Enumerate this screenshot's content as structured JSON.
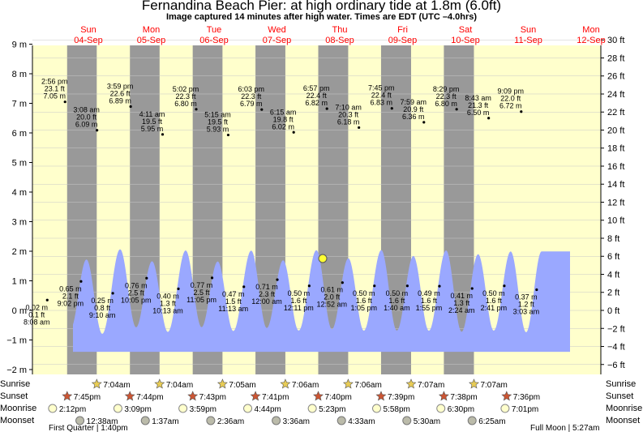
{
  "title": "Fernandina Beach Pier: at high  ordinary tide at 1.8m (6.0ft)",
  "subtitle": "Image captured 14 minutes after high water. Times are EDT (UTC –4.0hrs)",
  "colors": {
    "tide_fill": "#9aa8ff",
    "day_bg": "#ffffcc",
    "night_bg": "#999999",
    "day_label": "#ff0000",
    "current_marker": "#ffff33"
  },
  "chart_data": {
    "type": "area",
    "title": "Fernandina Beach Pier: at high  ordinary tide at 1.8m (6.0ft)",
    "left_axis": {
      "unit": "m",
      "ylim": [
        -2.5,
        9.5
      ],
      "ticks": [
        -2,
        -1,
        0,
        1,
        2,
        3,
        4,
        5,
        6,
        7,
        8,
        9
      ],
      "tick_labels": [
        "−2 m",
        "−1 m",
        "0 m",
        "1 m",
        "2 m",
        "3 m",
        "4 m",
        "5 m",
        "6 m",
        "7 m",
        "8 m",
        "9 m"
      ]
    },
    "right_axis": {
      "unit": "ft",
      "ticks": [
        -6,
        -4,
        -2,
        0,
        2,
        4,
        6,
        8,
        10,
        12,
        14,
        16,
        18,
        20,
        22,
        24,
        26,
        28,
        30
      ],
      "tick_labels": [
        "−6 ft",
        "−4 ft",
        "−2 ft",
        "0 ft",
        "2 ft",
        "4 ft",
        "6 ft",
        "8 ft",
        "10 ft",
        "12 ft",
        "14 ft",
        "16 ft",
        "18 ft",
        "20 ft",
        "22 ft",
        "24 ft",
        "26 ft",
        "28 ft",
        "30 ft"
      ]
    },
    "days": [
      {
        "dow": "Sun",
        "date": "04-Sep"
      },
      {
        "dow": "Mon",
        "date": "05-Sep"
      },
      {
        "dow": "Tue",
        "date": "06-Sep"
      },
      {
        "dow": "Wed",
        "date": "07-Sep"
      },
      {
        "dow": "Thu",
        "date": "08-Sep"
      },
      {
        "dow": "Fri",
        "date": "09-Sep"
      },
      {
        "dow": "Sat",
        "date": "10-Sep"
      },
      {
        "dow": "Sun",
        "date": "11-Sep"
      },
      {
        "dow": "Mon",
        "date": "12-Sep"
      }
    ],
    "tide_extremes": [
      {
        "date": "04-Sep",
        "time": "8:08 am",
        "height_m": 0.02,
        "height_ft": "0.1 ft",
        "type": "low"
      },
      {
        "date": "04-Sep",
        "time": "2:56 pm",
        "height_m": 7.05,
        "height_ft": "23.1 ft",
        "type": "high"
      },
      {
        "date": "04-Sep",
        "time": "9:02 pm",
        "height_m": 0.65,
        "height_ft": "2.1 ft",
        "type": "low"
      },
      {
        "date": "05-Sep",
        "time": "3:08 am",
        "height_m": 6.09,
        "height_ft": "20.0 ft",
        "type": "high"
      },
      {
        "date": "05-Sep",
        "time": "9:10 am",
        "height_m": 0.25,
        "height_ft": "0.8 ft",
        "type": "low"
      },
      {
        "date": "05-Sep",
        "time": "3:59 pm",
        "height_m": 6.89,
        "height_ft": "22.6 ft",
        "type": "high"
      },
      {
        "date": "05-Sep",
        "time": "10:05 pm",
        "height_m": 0.76,
        "height_ft": "2.5 ft",
        "type": "low"
      },
      {
        "date": "06-Sep",
        "time": "4:11 am",
        "height_m": 5.95,
        "height_ft": "19.5 ft",
        "type": "high"
      },
      {
        "date": "06-Sep",
        "time": "10:13 am",
        "height_m": 0.4,
        "height_ft": "1.3 ft",
        "type": "low"
      },
      {
        "date": "06-Sep",
        "time": "5:02 pm",
        "height_m": 6.8,
        "height_ft": "22.3 ft",
        "type": "high"
      },
      {
        "date": "06-Sep",
        "time": "11:05 pm",
        "height_m": 0.77,
        "height_ft": "2.5 ft",
        "type": "low"
      },
      {
        "date": "07-Sep",
        "time": "5:15 am",
        "height_m": 5.93,
        "height_ft": "19.5 ft",
        "type": "high"
      },
      {
        "date": "07-Sep",
        "time": "11:13 am",
        "height_m": 0.47,
        "height_ft": "1.5 ft",
        "type": "low"
      },
      {
        "date": "07-Sep",
        "time": "6:03 pm",
        "height_m": 6.79,
        "height_ft": "22.3 ft",
        "type": "high"
      },
      {
        "date": "08-Sep",
        "time": "12:00 am",
        "height_m": 0.71,
        "height_ft": "2.3 ft",
        "type": "low"
      },
      {
        "date": "08-Sep",
        "time": "6:15 am",
        "height_m": 6.02,
        "height_ft": "19.8 ft",
        "type": "high"
      },
      {
        "date": "08-Sep",
        "time": "12:11 pm",
        "height_m": 0.5,
        "height_ft": "1.6 ft",
        "type": "low"
      },
      {
        "date": "08-Sep",
        "time": "6:57 pm",
        "height_m": 6.82,
        "height_ft": "22.4 ft",
        "type": "high"
      },
      {
        "date": "09-Sep",
        "time": "12:52 am",
        "height_m": 0.61,
        "height_ft": "2.0 ft",
        "type": "low"
      },
      {
        "date": "09-Sep",
        "time": "7:10 am",
        "height_m": 6.18,
        "height_ft": "20.3 ft",
        "type": "high"
      },
      {
        "date": "09-Sep",
        "time": "1:05 pm",
        "height_m": 0.5,
        "height_ft": "1.6 ft",
        "type": "low"
      },
      {
        "date": "09-Sep",
        "time": "7:45 pm",
        "height_m": 6.83,
        "height_ft": "22.4 ft",
        "type": "high"
      },
      {
        "date": "10-Sep",
        "time": "1:40 am",
        "height_m": 0.5,
        "height_ft": "1.6 ft",
        "type": "low"
      },
      {
        "date": "10-Sep",
        "time": "7:59 am",
        "height_m": 6.36,
        "height_ft": "20.9 ft",
        "type": "high"
      },
      {
        "date": "10-Sep",
        "time": "1:55 pm",
        "height_m": 0.49,
        "height_ft": "1.6 ft",
        "type": "low"
      },
      {
        "date": "10-Sep",
        "time": "8:29 pm",
        "height_m": 6.8,
        "height_ft": "22.3 ft",
        "type": "high"
      },
      {
        "date": "11-Sep",
        "time": "2:24 am",
        "height_m": 0.41,
        "height_ft": "1.3 ft",
        "type": "low"
      },
      {
        "date": "11-Sep",
        "time": "8:43 am",
        "height_m": 6.5,
        "height_ft": "21.3 ft",
        "type": "high"
      },
      {
        "date": "11-Sep",
        "time": "2:41 pm",
        "height_m": 0.5,
        "height_ft": "1.6 ft",
        "type": "low"
      },
      {
        "date": "11-Sep",
        "time": "9:09 pm",
        "height_m": 6.72,
        "height_ft": "22.0 ft",
        "type": "high"
      },
      {
        "date": "12-Sep",
        "time": "3:03 am",
        "height_m": 0.37,
        "height_ft": "1.2 ft",
        "type": "low"
      }
    ],
    "current": {
      "height_m": 1.8,
      "height_ft": 6.0,
      "state": "high"
    },
    "astro_row_labels": {
      "sunrise": "Sunrise",
      "sunset": "Sunset",
      "moonrise": "Moonrise",
      "moonset": "Moonset"
    },
    "sunrise": [
      {
        "date": "05-Sep",
        "time": "7:04am"
      },
      {
        "date": "06-Sep",
        "time": "7:04am"
      },
      {
        "date": "07-Sep",
        "time": "7:05am"
      },
      {
        "date": "08-Sep",
        "time": "7:06am"
      },
      {
        "date": "09-Sep",
        "time": "7:06am"
      },
      {
        "date": "10-Sep",
        "time": "7:07am"
      },
      {
        "date": "11-Sep",
        "time": "7:07am"
      }
    ],
    "sunset": [
      {
        "date": "04-Sep",
        "time": "7:45pm"
      },
      {
        "date": "05-Sep",
        "time": "7:44pm"
      },
      {
        "date": "06-Sep",
        "time": "7:43pm"
      },
      {
        "date": "07-Sep",
        "time": "7:41pm"
      },
      {
        "date": "08-Sep",
        "time": "7:40pm"
      },
      {
        "date": "09-Sep",
        "time": "7:39pm"
      },
      {
        "date": "10-Sep",
        "time": "7:38pm"
      },
      {
        "date": "11-Sep",
        "time": "7:36pm"
      }
    ],
    "moonrise": [
      {
        "date": "04-Sep",
        "time": "2:12pm"
      },
      {
        "date": "05-Sep",
        "time": "3:09pm"
      },
      {
        "date": "06-Sep",
        "time": "3:59pm"
      },
      {
        "date": "07-Sep",
        "time": "4:44pm"
      },
      {
        "date": "08-Sep",
        "time": "5:23pm"
      },
      {
        "date": "09-Sep",
        "time": "5:58pm"
      },
      {
        "date": "10-Sep",
        "time": "6:30pm"
      },
      {
        "date": "11-Sep",
        "time": "7:01pm"
      }
    ],
    "moonset": [
      {
        "date": "05-Sep",
        "time": "12:38am"
      },
      {
        "date": "06-Sep",
        "time": "1:37am"
      },
      {
        "date": "07-Sep",
        "time": "2:36am"
      },
      {
        "date": "08-Sep",
        "time": "3:36am"
      },
      {
        "date": "09-Sep",
        "time": "4:33am"
      },
      {
        "date": "10-Sep",
        "time": "5:30am"
      },
      {
        "date": "11-Sep",
        "time": "6:25am"
      }
    ],
    "moon_phases": {
      "first_quarter": "First Quarter | 1:40pm",
      "full_moon": "Full Moon | 5:27am"
    },
    "grid": true
  }
}
